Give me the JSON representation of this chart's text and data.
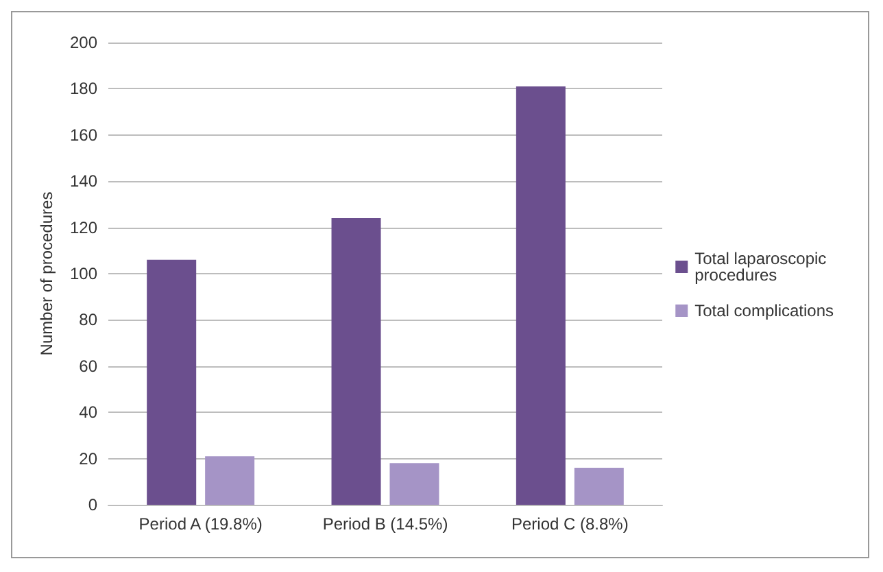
{
  "chart_data": {
    "type": "bar",
    "ylabel": "Number of procedures",
    "categories": [
      "Period A (19.8%)",
      "Period B (14.5%)",
      "Period C (8.8%)"
    ],
    "series": [
      {
        "name": "Total laparoscopic procedures",
        "color": "#6b4f8e",
        "values": [
          106,
          124,
          181
        ]
      },
      {
        "name": "Total complications",
        "color": "#a594c6",
        "values": [
          21,
          18,
          16
        ]
      }
    ],
    "ylim": [
      0,
      200
    ],
    "yticks": [
      0,
      20,
      40,
      60,
      80,
      100,
      120,
      140,
      160,
      180,
      200
    ],
    "grid": "y",
    "legend": "right"
  }
}
